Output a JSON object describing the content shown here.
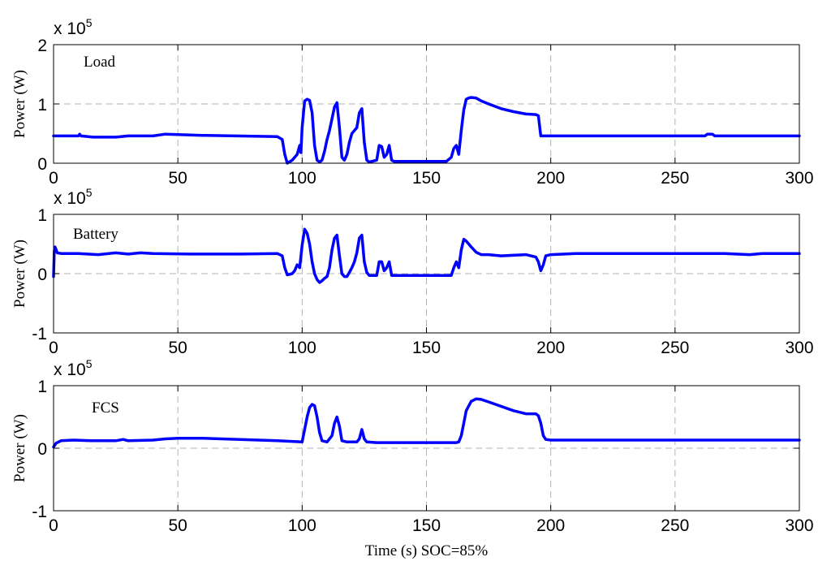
{
  "chart_data": [
    {
      "type": "line",
      "panel_label": "Load",
      "ylabel": "Power (W)",
      "y_exponent_base": "x 10",
      "y_exponent_power": "5",
      "xlim": [
        0,
        300
      ],
      "ylim": [
        0,
        2
      ],
      "xticks": [
        0,
        50,
        100,
        150,
        200,
        250,
        300
      ],
      "yticks": [
        0,
        1,
        2
      ],
      "grid": true,
      "color": "#0000ff",
      "series": [
        {
          "x": [
            0,
            10,
            10.5,
            11,
            16,
            25,
            30,
            40,
            45,
            60,
            90,
            92,
            93,
            94,
            96,
            97,
            98,
            99,
            99.5,
            100,
            101,
            102,
            103,
            104,
            105,
            106,
            107,
            108,
            109,
            110,
            111,
            112,
            113,
            114,
            115,
            116,
            117,
            118,
            119,
            120,
            121,
            122,
            123,
            124,
            125,
            126,
            127,
            130,
            131,
            132,
            133,
            134,
            135,
            136,
            137,
            140,
            150,
            158,
            160,
            161,
            162,
            163,
            164,
            165,
            166,
            167,
            168,
            170,
            172,
            175,
            180,
            185,
            190,
            194,
            195,
            196,
            197,
            200,
            250,
            262,
            263,
            265,
            266,
            300
          ],
          "y": [
            0.46,
            0.46,
            0.49,
            0.46,
            0.44,
            0.44,
            0.46,
            0.46,
            0.49,
            0.47,
            0.45,
            0.4,
            0.15,
            0.0,
            0.05,
            0.1,
            0.15,
            0.3,
            0.18,
            0.6,
            1.05,
            1.08,
            1.06,
            0.85,
            0.3,
            0.05,
            0.02,
            0.05,
            0.2,
            0.4,
            0.55,
            0.75,
            0.95,
            1.02,
            0.6,
            0.1,
            0.05,
            0.15,
            0.35,
            0.5,
            0.55,
            0.6,
            0.85,
            0.92,
            0.35,
            0.05,
            0.02,
            0.05,
            0.3,
            0.28,
            0.1,
            0.15,
            0.3,
            0.05,
            0.03,
            0.03,
            0.03,
            0.03,
            0.1,
            0.25,
            0.3,
            0.15,
            0.55,
            0.9,
            1.08,
            1.1,
            1.11,
            1.1,
            1.05,
            1.0,
            0.92,
            0.87,
            0.83,
            0.82,
            0.8,
            0.46,
            0.46,
            0.46,
            0.46,
            0.46,
            0.49,
            0.49,
            0.46,
            0.46
          ]
        }
      ]
    },
    {
      "type": "line",
      "panel_label": "Battery",
      "ylabel": "Power (W)",
      "y_exponent_base": "x 10",
      "y_exponent_power": "5",
      "xlim": [
        0,
        300
      ],
      "ylim": [
        -1,
        1
      ],
      "xticks": [
        0,
        50,
        100,
        150,
        200,
        250,
        300
      ],
      "yticks": [
        -1,
        0,
        1
      ],
      "grid": true,
      "color": "#0000ff",
      "series": [
        {
          "x": [
            0,
            0.3,
            0.6,
            1.5,
            3,
            10,
            18,
            25,
            30,
            35,
            40,
            55,
            75,
            90,
            92,
            93,
            94,
            96,
            97,
            98,
            99,
            100,
            101,
            102,
            103,
            104,
            105,
            106,
            107,
            108,
            109,
            110,
            111,
            112,
            113,
            114,
            115,
            116,
            117,
            118,
            119,
            120,
            121,
            122,
            123,
            124,
            125,
            126,
            127,
            130,
            131,
            132,
            133,
            134,
            135,
            136,
            137,
            145,
            160,
            161,
            162,
            163,
            164,
            165,
            166,
            168,
            170,
            172,
            175,
            180,
            190,
            194,
            195,
            196,
            197,
            198,
            200,
            210,
            265,
            270,
            280,
            285,
            300
          ],
          "y": [
            -0.05,
            0.38,
            0.45,
            0.35,
            0.34,
            0.34,
            0.32,
            0.35,
            0.33,
            0.35,
            0.34,
            0.33,
            0.33,
            0.34,
            0.3,
            0.1,
            -0.02,
            0.0,
            0.05,
            0.15,
            0.1,
            0.48,
            0.75,
            0.68,
            0.5,
            0.2,
            0.0,
            -0.1,
            -0.15,
            -0.12,
            -0.08,
            -0.05,
            0.1,
            0.4,
            0.6,
            0.65,
            0.3,
            0.0,
            -0.05,
            -0.05,
            0.02,
            0.1,
            0.2,
            0.35,
            0.6,
            0.65,
            0.2,
            0.02,
            -0.03,
            -0.03,
            0.2,
            0.2,
            0.05,
            0.1,
            0.2,
            -0.03,
            -0.03,
            -0.03,
            -0.03,
            0.1,
            0.2,
            0.1,
            0.4,
            0.58,
            0.55,
            0.45,
            0.36,
            0.32,
            0.32,
            0.3,
            0.32,
            0.28,
            0.2,
            0.05,
            0.15,
            0.3,
            0.32,
            0.34,
            0.34,
            0.34,
            0.32,
            0.34,
            0.34
          ]
        }
      ]
    },
    {
      "type": "line",
      "panel_label": "FCS",
      "ylabel": "Power (W)",
      "y_exponent_base": "x 10",
      "y_exponent_power": "5",
      "xlabel": "Time (s)  SOC=85%",
      "xlim": [
        0,
        300
      ],
      "ylim": [
        -1,
        1
      ],
      "xticks": [
        0,
        50,
        100,
        150,
        200,
        250,
        300
      ],
      "yticks": [
        -1,
        0,
        1
      ],
      "grid": true,
      "color": "#0000ff",
      "series": [
        {
          "x": [
            0,
            1,
            3,
            8,
            15,
            25,
            28,
            30,
            40,
            45,
            50,
            60,
            75,
            90,
            100,
            101,
            102,
            103,
            104,
            105,
            106,
            107,
            108,
            110,
            112,
            113,
            114,
            115,
            116,
            118,
            120,
            122,
            123,
            124,
            125,
            126,
            130,
            140,
            160,
            162,
            163,
            164,
            165,
            166,
            168,
            170,
            172,
            175,
            180,
            185,
            190,
            194,
            195,
            196,
            197,
            198,
            200,
            250,
            300
          ],
          "y": [
            0.02,
            0.08,
            0.12,
            0.13,
            0.12,
            0.12,
            0.14,
            0.12,
            0.13,
            0.15,
            0.16,
            0.16,
            0.14,
            0.12,
            0.1,
            0.3,
            0.5,
            0.65,
            0.7,
            0.68,
            0.5,
            0.25,
            0.12,
            0.1,
            0.2,
            0.4,
            0.5,
            0.35,
            0.12,
            0.1,
            0.1,
            0.1,
            0.15,
            0.3,
            0.15,
            0.1,
            0.09,
            0.09,
            0.09,
            0.09,
            0.1,
            0.2,
            0.4,
            0.6,
            0.75,
            0.79,
            0.78,
            0.74,
            0.67,
            0.6,
            0.55,
            0.55,
            0.52,
            0.4,
            0.2,
            0.14,
            0.13,
            0.13,
            0.13
          ]
        }
      ]
    }
  ]
}
